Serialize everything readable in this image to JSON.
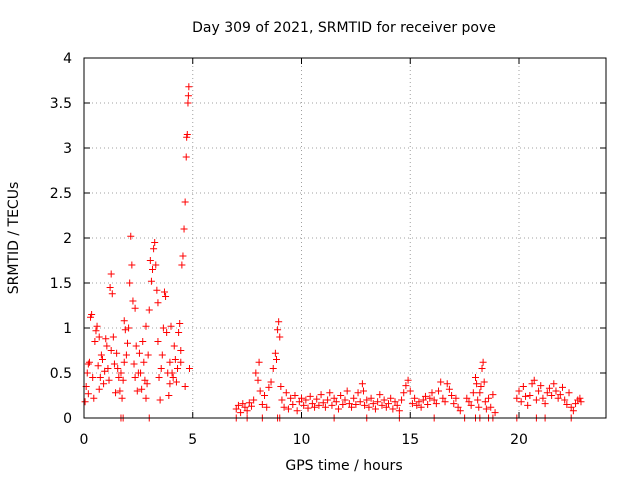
{
  "chart_data": {
    "type": "scatter",
    "title": "Day 309 of 2021, SRMTID for receiver pove",
    "xlabel": "GPS time / hours",
    "ylabel": "SRMTID / TECUs",
    "xlim": [
      0,
      24
    ],
    "ylim": [
      0,
      4
    ],
    "xticks": [
      0,
      5,
      10,
      15,
      20
    ],
    "xtick_labels": [
      "0",
      "5",
      "10",
      "15",
      "20"
    ],
    "yticks": [
      0,
      0.5,
      1,
      1.5,
      2,
      2.5,
      3,
      3.5,
      4
    ],
    "ytick_labels": [
      "0",
      "0.5",
      "1",
      "1.5",
      "2",
      "2.5",
      "3",
      "3.5",
      "4"
    ],
    "grid": true,
    "legend": "none",
    "marker": "+",
    "color": "#ff0000",
    "points": [
      [
        0.05,
        0.18
      ],
      [
        0.1,
        0.35
      ],
      [
        0.15,
        0.5
      ],
      [
        0.2,
        0.27
      ],
      [
        0.25,
        0.62
      ],
      [
        0.3,
        1.12
      ],
      [
        0.35,
        1.15
      ],
      [
        0.4,
        0.45
      ],
      [
        0.45,
        0.22
      ],
      [
        0.5,
        0.85
      ],
      [
        0.55,
        0.97
      ],
      [
        0.6,
        1.02
      ],
      [
        0.65,
        0.58
      ],
      [
        0.7,
        0.32
      ],
      [
        0.75,
        0.45
      ],
      [
        0.8,
        0.7
      ],
      [
        0.85,
        0.65
      ],
      [
        0.9,
        0.38
      ],
      [
        0.95,
        0.52
      ],
      [
        1.0,
        0.88
      ],
      [
        1.05,
        0.8
      ],
      [
        1.1,
        0.55
      ],
      [
        1.15,
        0.42
      ],
      [
        1.2,
        1.45
      ],
      [
        1.25,
        1.6
      ],
      [
        1.3,
        1.38
      ],
      [
        1.35,
        0.9
      ],
      [
        1.4,
        0.6
      ],
      [
        1.45,
        0.28
      ],
      [
        1.5,
        0.72
      ],
      [
        1.55,
        0.55
      ],
      [
        1.6,
        0.45
      ],
      [
        1.65,
        0.3
      ],
      [
        1.7,
        0.5
      ],
      [
        1.75,
        0.22
      ],
      [
        1.8,
        0.42
      ],
      [
        1.85,
        0.62
      ],
      [
        1.9,
        0.98
      ],
      [
        1.95,
        0.7
      ],
      [
        2.0,
        0.83
      ],
      [
        2.05,
        1.0
      ],
      [
        2.1,
        1.5
      ],
      [
        2.15,
        2.02
      ],
      [
        2.2,
        1.7
      ],
      [
        2.25,
        1.3
      ],
      [
        2.3,
        0.6
      ],
      [
        2.35,
        0.45
      ],
      [
        2.4,
        0.8
      ],
      [
        2.45,
        0.3
      ],
      [
        2.5,
        0.5
      ],
      [
        2.55,
        0.72
      ],
      [
        2.6,
        0.5
      ],
      [
        2.65,
        0.32
      ],
      [
        2.7,
        0.85
      ],
      [
        2.75,
        0.62
      ],
      [
        2.8,
        0.42
      ],
      [
        2.85,
        0.22
      ],
      [
        2.9,
        0.38
      ],
      [
        2.95,
        0.7
      ],
      [
        3.0,
        1.2
      ],
      [
        3.05,
        1.75
      ],
      [
        3.1,
        1.52
      ],
      [
        3.15,
        1.65
      ],
      [
        3.2,
        1.88
      ],
      [
        3.25,
        1.95
      ],
      [
        3.3,
        1.7
      ],
      [
        3.35,
        1.42
      ],
      [
        3.4,
        0.85
      ],
      [
        3.45,
        0.45
      ],
      [
        3.5,
        0.2
      ],
      [
        3.55,
        0.55
      ],
      [
        3.6,
        0.7
      ],
      [
        3.65,
        1.0
      ],
      [
        3.7,
        1.4
      ],
      [
        3.75,
        1.35
      ],
      [
        3.8,
        0.95
      ],
      [
        3.85,
        0.5
      ],
      [
        3.9,
        0.25
      ],
      [
        3.95,
        0.62
      ],
      [
        4.0,
        1.02
      ],
      [
        4.05,
        0.5
      ],
      [
        4.1,
        0.45
      ],
      [
        4.15,
        0.8
      ],
      [
        4.2,
        0.65
      ],
      [
        4.25,
        0.4
      ],
      [
        4.3,
        0.55
      ],
      [
        4.35,
        0.95
      ],
      [
        4.4,
        1.05
      ],
      [
        4.45,
        0.62
      ],
      [
        4.5,
        1.7
      ],
      [
        4.55,
        1.8
      ],
      [
        4.6,
        2.1
      ],
      [
        4.65,
        2.4
      ],
      [
        4.7,
        2.9
      ],
      [
        4.72,
        3.12
      ],
      [
        4.75,
        3.15
      ],
      [
        4.78,
        3.5
      ],
      [
        4.8,
        3.58
      ],
      [
        4.82,
        3.68
      ],
      [
        4.85,
        0.55
      ],
      [
        0.2,
        0.6
      ],
      [
        0.7,
        0.9
      ],
      [
        1.25,
        0.75
      ],
      [
        1.85,
        1.08
      ],
      [
        2.35,
        1.22
      ],
      [
        2.85,
        1.02
      ],
      [
        3.4,
        1.28
      ],
      [
        3.95,
        0.38
      ],
      [
        4.45,
        0.75
      ],
      [
        4.65,
        0.35
      ],
      [
        7.0,
        0.1
      ],
      [
        7.1,
        0.14
      ],
      [
        7.2,
        0.06
      ],
      [
        7.3,
        0.16
      ],
      [
        7.4,
        0.12
      ],
      [
        7.5,
        0.08
      ],
      [
        7.6,
        0.17
      ],
      [
        7.7,
        0.13
      ],
      [
        7.8,
        0.2
      ],
      [
        7.9,
        0.5
      ],
      [
        8.0,
        0.42
      ],
      [
        8.05,
        0.62
      ],
      [
        8.1,
        0.3
      ],
      [
        8.2,
        0.15
      ],
      [
        8.3,
        0.25
      ],
      [
        8.4,
        0.12
      ],
      [
        8.5,
        0.34
      ],
      [
        8.6,
        0.4
      ],
      [
        8.7,
        0.55
      ],
      [
        8.8,
        0.72
      ],
      [
        8.85,
        0.65
      ],
      [
        8.9,
        0.98
      ],
      [
        8.95,
        1.07
      ],
      [
        9.0,
        0.9
      ],
      [
        9.05,
        0.35
      ],
      [
        9.1,
        0.2
      ],
      [
        9.2,
        0.12
      ],
      [
        9.3,
        0.28
      ],
      [
        9.4,
        0.1
      ],
      [
        9.5,
        0.22
      ],
      [
        9.6,
        0.15
      ],
      [
        9.7,
        0.25
      ],
      [
        9.8,
        0.08
      ],
      [
        9.9,
        0.18
      ],
      [
        10.0,
        0.22
      ],
      [
        10.1,
        0.14
      ],
      [
        10.2,
        0.2
      ],
      [
        10.3,
        0.11
      ],
      [
        10.4,
        0.24
      ],
      [
        10.5,
        0.16
      ],
      [
        10.6,
        0.12
      ],
      [
        10.7,
        0.21
      ],
      [
        10.8,
        0.14
      ],
      [
        10.9,
        0.26
      ],
      [
        11.0,
        0.17
      ],
      [
        11.1,
        0.12
      ],
      [
        11.2,
        0.2
      ],
      [
        11.3,
        0.28
      ],
      [
        11.4,
        0.14
      ],
      [
        11.5,
        0.22
      ],
      [
        11.6,
        0.18
      ],
      [
        11.7,
        0.1
      ],
      [
        11.8,
        0.25
      ],
      [
        11.9,
        0.15
      ],
      [
        12.0,
        0.2
      ],
      [
        12.1,
        0.3
      ],
      [
        12.2,
        0.16
      ],
      [
        12.3,
        0.12
      ],
      [
        12.4,
        0.22
      ],
      [
        12.5,
        0.15
      ],
      [
        12.6,
        0.28
      ],
      [
        12.7,
        0.18
      ],
      [
        12.8,
        0.38
      ],
      [
        12.85,
        0.3
      ],
      [
        12.9,
        0.14
      ],
      [
        13.0,
        0.2
      ],
      [
        13.1,
        0.12
      ],
      [
        13.2,
        0.22
      ],
      [
        13.3,
        0.16
      ],
      [
        13.4,
        0.1
      ],
      [
        13.5,
        0.18
      ],
      [
        13.6,
        0.26
      ],
      [
        13.7,
        0.14
      ],
      [
        13.8,
        0.2
      ],
      [
        13.9,
        0.12
      ],
      [
        14.0,
        0.16
      ],
      [
        14.1,
        0.22
      ],
      [
        14.2,
        0.1
      ],
      [
        14.3,
        0.18
      ],
      [
        14.4,
        0.14
      ],
      [
        14.5,
        0.08
      ],
      [
        14.6,
        0.2
      ],
      [
        14.7,
        0.28
      ],
      [
        14.8,
        0.36
      ],
      [
        14.9,
        0.42
      ],
      [
        15.0,
        0.3
      ],
      [
        15.1,
        0.16
      ],
      [
        15.2,
        0.22
      ],
      [
        15.3,
        0.14
      ],
      [
        15.4,
        0.18
      ],
      [
        15.5,
        0.12
      ],
      [
        15.6,
        0.2
      ],
      [
        15.7,
        0.24
      ],
      [
        15.8,
        0.15
      ],
      [
        15.9,
        0.22
      ],
      [
        16.0,
        0.28
      ],
      [
        16.1,
        0.2
      ],
      [
        16.2,
        0.16
      ],
      [
        16.3,
        0.3
      ],
      [
        16.4,
        0.4
      ],
      [
        16.5,
        0.22
      ],
      [
        16.6,
        0.18
      ],
      [
        16.7,
        0.38
      ],
      [
        16.8,
        0.32
      ],
      [
        16.9,
        0.25
      ],
      [
        17.0,
        0.16
      ],
      [
        17.1,
        0.22
      ],
      [
        17.2,
        0.12
      ],
      [
        17.3,
        0.08
      ],
      [
        17.6,
        0.22
      ],
      [
        17.7,
        0.18
      ],
      [
        17.8,
        0.14
      ],
      [
        17.9,
        0.28
      ],
      [
        18.0,
        0.45
      ],
      [
        18.05,
        0.38
      ],
      [
        18.1,
        0.2
      ],
      [
        18.15,
        0.12
      ],
      [
        18.2,
        0.28
      ],
      [
        18.25,
        0.35
      ],
      [
        18.3,
        0.55
      ],
      [
        18.35,
        0.62
      ],
      [
        18.4,
        0.4
      ],
      [
        18.45,
        0.18
      ],
      [
        18.5,
        0.1
      ],
      [
        18.6,
        0.22
      ],
      [
        18.7,
        0.12
      ],
      [
        18.8,
        0.26
      ],
      [
        18.9,
        0.06
      ],
      [
        19.9,
        0.22
      ],
      [
        20.0,
        0.3
      ],
      [
        20.1,
        0.18
      ],
      [
        20.2,
        0.35
      ],
      [
        20.3,
        0.24
      ],
      [
        20.4,
        0.14
      ],
      [
        20.5,
        0.25
      ],
      [
        20.6,
        0.38
      ],
      [
        20.7,
        0.42
      ],
      [
        20.8,
        0.2
      ],
      [
        20.9,
        0.3
      ],
      [
        21.0,
        0.36
      ],
      [
        21.1,
        0.22
      ],
      [
        21.2,
        0.16
      ],
      [
        21.3,
        0.28
      ],
      [
        21.4,
        0.33
      ],
      [
        21.5,
        0.25
      ],
      [
        21.6,
        0.38
      ],
      [
        21.7,
        0.3
      ],
      [
        21.8,
        0.22
      ],
      [
        21.9,
        0.26
      ],
      [
        22.0,
        0.34
      ],
      [
        22.1,
        0.2
      ],
      [
        22.2,
        0.15
      ],
      [
        22.3,
        0.28
      ],
      [
        22.4,
        0.12
      ],
      [
        22.5,
        0.08
      ],
      [
        22.6,
        0.16
      ],
      [
        22.7,
        0.2
      ],
      [
        22.8,
        0.22
      ],
      [
        22.85,
        0.18
      ],
      [
        1.7,
        0
      ],
      [
        1.8,
        0
      ],
      [
        3.0,
        0
      ],
      [
        7.0,
        0
      ],
      [
        7.5,
        0
      ],
      [
        8.2,
        0
      ],
      [
        8.9,
        0
      ],
      [
        9.0,
        0
      ],
      [
        11.5,
        0
      ],
      [
        13.0,
        0
      ],
      [
        14.5,
        0
      ],
      [
        16.1,
        0
      ],
      [
        17.5,
        0
      ],
      [
        18.0,
        0
      ],
      [
        18.2,
        0
      ],
      [
        18.6,
        0
      ],
      [
        18.8,
        0
      ],
      [
        19.9,
        0
      ],
      [
        20.8,
        0
      ],
      [
        21.2,
        0
      ],
      [
        22.4,
        0
      ]
    ]
  }
}
